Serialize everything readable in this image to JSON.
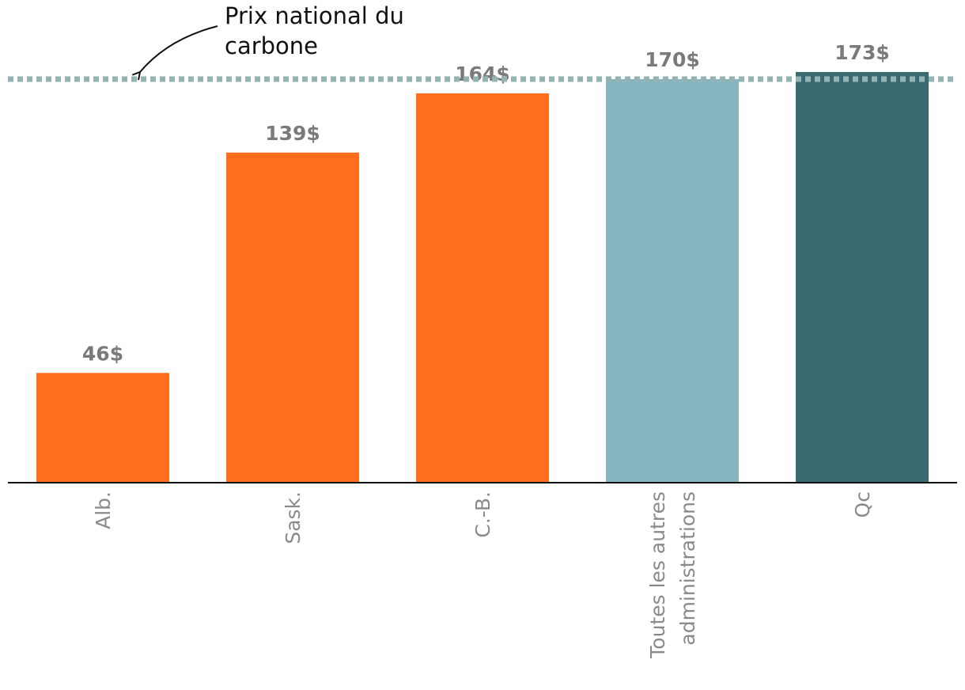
{
  "chart_data": {
    "type": "bar",
    "categories": [
      [
        "Alb."
      ],
      [
        "Sask."
      ],
      [
        "C.-B."
      ],
      [
        "Toutes les autres",
        "administrations"
      ],
      [
        "Qc"
      ]
    ],
    "values": [
      46,
      139,
      164,
      170,
      173
    ],
    "value_labels": [
      "46$",
      "139$",
      "164$",
      "170$",
      "173$"
    ],
    "bar_colors": [
      "#ff6e1e",
      "#ff6e1e",
      "#ff6e1e",
      "#88b6c0",
      "#3b6970"
    ],
    "ylim": [
      0,
      173
    ],
    "reference_line": {
      "value": 170,
      "style": "dotted",
      "color": "#93b4b3",
      "label_lines": [
        "Prix national du",
        "carbone"
      ]
    },
    "grid": false,
    "axis_color": "#111111"
  }
}
